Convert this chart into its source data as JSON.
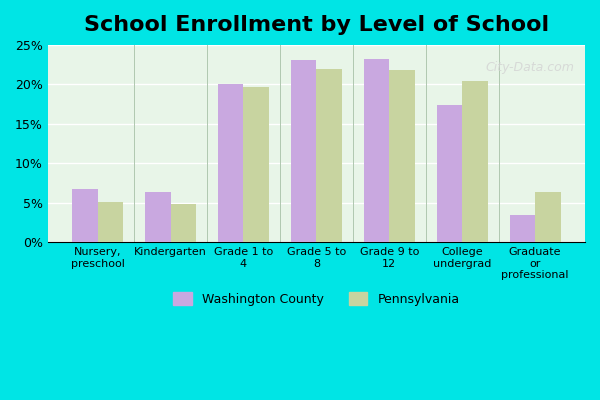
{
  "title": "School Enrollment by Level of School",
  "categories": [
    "Nursery,\npreschool",
    "Kindergarten",
    "Grade 1 to\n4",
    "Grade 5 to\n8",
    "Grade 9 to\n12",
    "College\nundergrad",
    "Graduate\nor\nprofessional"
  ],
  "washington_county": [
    6.8,
    6.3,
    20.1,
    23.1,
    23.2,
    17.4,
    3.5
  ],
  "pennsylvania": [
    5.1,
    4.8,
    19.7,
    21.9,
    21.8,
    20.4,
    6.4
  ],
  "washington_color": "#c9a8e0",
  "pennsylvania_color": "#c8d4a0",
  "background_outer": "#00e5e5",
  "background_inner": "#e8f5e8",
  "title_fontsize": 16,
  "ylim": [
    0,
    25
  ],
  "yticks": [
    0,
    5,
    10,
    15,
    20,
    25
  ],
  "legend_labels": [
    "Washington County",
    "Pennsylvania"
  ]
}
